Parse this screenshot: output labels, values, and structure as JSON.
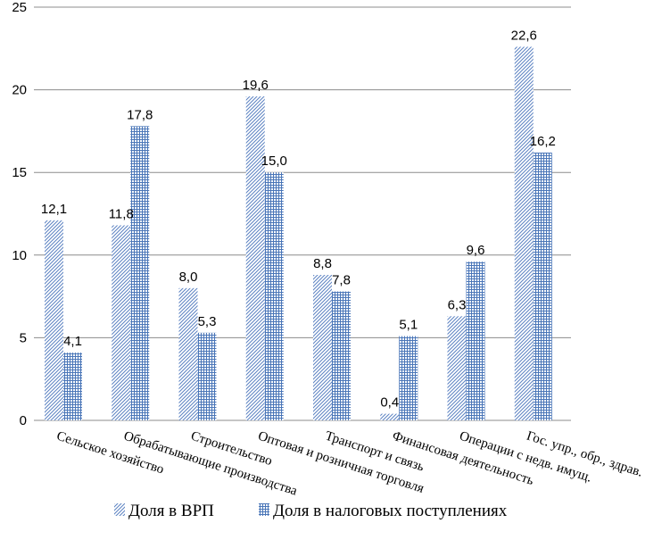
{
  "chart_data": {
    "type": "bar",
    "categories": [
      "Сельское хозяйство",
      "Обрабатывающие производства",
      "Строительство",
      "Оптовая и розничная торговля",
      "Транспорт и связь",
      "Финансовая деятельность",
      "Операции с недв. имущ.",
      "Гос. упр.,  обр., здрав."
    ],
    "series": [
      {
        "name": "Доля в ВРП",
        "values": [
          12.1,
          11.8,
          8.0,
          19.6,
          8.8,
          0.4,
          6.3,
          22.6
        ],
        "labels": [
          "12,1",
          "11,8",
          "8,0",
          "19,6",
          "8,8",
          "0,4",
          "6,3",
          "22,6"
        ],
        "color": "#4f81bd",
        "pattern": "diagonal-hatch"
      },
      {
        "name": "Доля в налоговых  поступлениях",
        "values": [
          4.1,
          17.8,
          5.3,
          15.0,
          7.8,
          5.1,
          9.6,
          16.2
        ],
        "labels": [
          "4,1",
          "17,8",
          "5,3",
          "15,0",
          "7,8",
          "5,1",
          "9,6",
          "16,2"
        ],
        "color": "#4f81bd",
        "pattern": "grid-hatch"
      }
    ],
    "y_ticks": [
      0,
      5,
      10,
      15,
      20,
      25
    ],
    "ylim": [
      0,
      25
    ],
    "grid": true,
    "legend_position": "bottom",
    "title": "",
    "xlabel": "",
    "ylabel": ""
  }
}
